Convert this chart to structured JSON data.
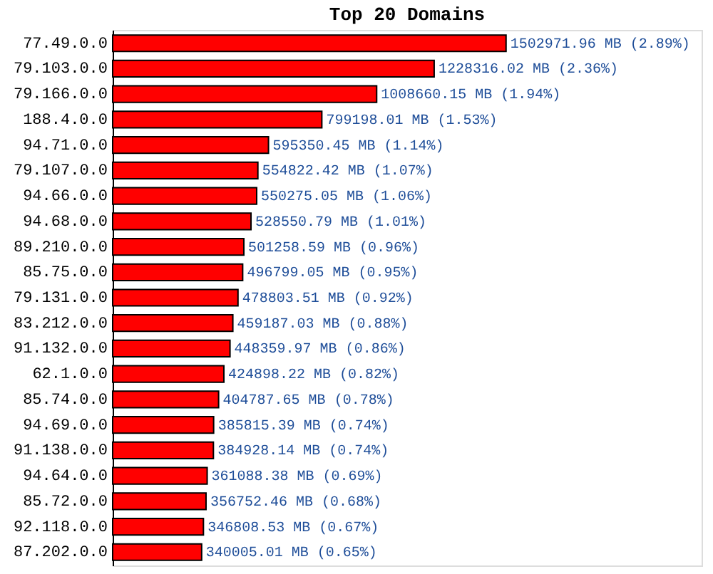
{
  "chart_data": {
    "type": "bar",
    "orientation": "horizontal",
    "title": "Top 20 Domains",
    "categories": [
      "77.49.0.0",
      "79.103.0.0",
      "79.166.0.0",
      "188.4.0.0",
      "94.71.0.0",
      "79.107.0.0",
      "94.66.0.0",
      "94.68.0.0",
      "89.210.0.0",
      "85.75.0.0",
      "79.131.0.0",
      "83.212.0.0",
      "91.132.0.0",
      "62.1.0.0",
      "85.74.0.0",
      "94.69.0.0",
      "91.138.0.0",
      "94.64.0.0",
      "85.72.0.0",
      "92.118.0.0",
      "87.202.0.0"
    ],
    "values": [
      1502971.96,
      1228316.02,
      1008660.15,
      799198.01,
      595350.45,
      554822.42,
      550275.05,
      528550.79,
      501258.59,
      496799.05,
      478803.51,
      459187.03,
      448359.97,
      424898.22,
      404787.65,
      385815.39,
      384928.14,
      361088.38,
      356752.46,
      346808.53,
      340005.01
    ],
    "value_labels": [
      "1502971.96 MB (2.89%)",
      "1228316.02 MB (2.36%)",
      "1008660.15 MB (1.94%)",
      "799198.01 MB (1.53%)",
      "595350.45 MB (1.14%)",
      "554822.42 MB (1.07%)",
      "550275.05 MB (1.06%)",
      "528550.79 MB (1.01%)",
      "501258.59 MB (0.96%)",
      "496799.05 MB (0.95%)",
      "478803.51 MB (0.92%)",
      "459187.03 MB (0.88%)",
      "448359.97 MB (0.86%)",
      "424898.22 MB (0.82%)",
      "404787.65 MB (0.78%)",
      "385815.39 MB (0.74%)",
      "384928.14 MB (0.74%)",
      "361088.38 MB (0.69%)",
      "356752.46 MB (0.68%)",
      "346808.53 MB (0.67%)",
      "340005.01 MB (0.65%)"
    ],
    "color": "#ff0000",
    "xlim": [
      0,
      2250000
    ],
    "tick_labels": "y"
  }
}
